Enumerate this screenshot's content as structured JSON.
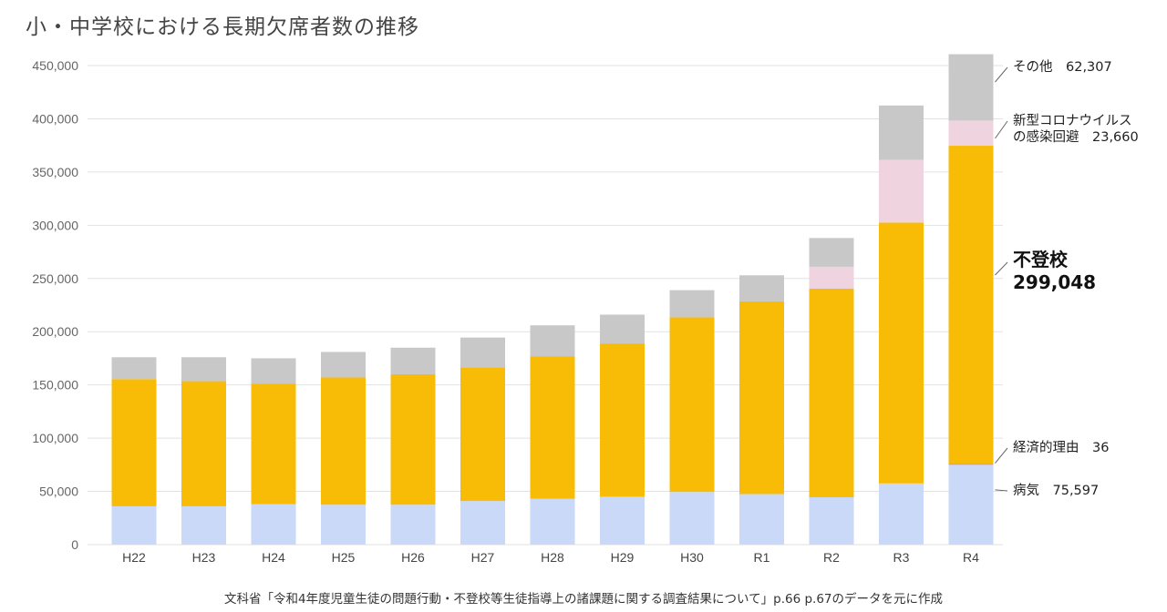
{
  "title": "小・中学校における長期欠席者数の推移",
  "source_note": "文科省「令和4年度児童生徒の問題行動・不登校等生徒指導上の諸課題に関する調査結果について」p.66 p.67のデータを元に作成",
  "colors": {
    "illness": "#c9d9f7",
    "economic": "#e07070",
    "futoko": "#f9bc06",
    "covid": "#efd3de",
    "other": "#c8c8c8",
    "grid": "#e2e2e2",
    "leader": "#666666"
  },
  "chart_data": {
    "type": "bar",
    "stacked": true,
    "categories": [
      "H22",
      "H23",
      "H24",
      "H25",
      "H26",
      "H27",
      "H28",
      "H29",
      "H30",
      "R1",
      "R2",
      "R3",
      "R4"
    ],
    "ylim": [
      0,
      450000
    ],
    "y_ticks": [
      "0",
      "50,000",
      "100,000",
      "150,000",
      "200,000",
      "250,000",
      "300,000",
      "350,000",
      "400,000",
      "450,000"
    ],
    "grid": true,
    "series": [
      {
        "key": "illness",
        "values": [
          36000,
          36000,
          38000,
          37500,
          37500,
          41000,
          43000,
          45000,
          49500,
          47500,
          44500,
          57500,
          75597
        ]
      },
      {
        "key": "economic",
        "values": [
          0,
          0,
          0,
          0,
          0,
          0,
          0,
          0,
          0,
          0,
          0,
          0,
          36
        ]
      },
      {
        "key": "futoko",
        "values": [
          119500,
          117500,
          113000,
          119500,
          122500,
          125500,
          134000,
          144000,
          164000,
          181000,
          196000,
          245000,
          299048
        ]
      },
      {
        "key": "covid",
        "values": [
          0,
          0,
          0,
          0,
          0,
          0,
          0,
          0,
          0,
          0,
          20500,
          59000,
          23660
        ]
      },
      {
        "key": "other",
        "values": [
          20500,
          22500,
          24000,
          24000,
          25000,
          28000,
          29000,
          27000,
          25500,
          24500,
          27000,
          51000,
          62307
        ]
      }
    ],
    "annotations": [
      {
        "series": "other",
        "lines": [
          "その他　62,307"
        ],
        "bold": false
      },
      {
        "series": "covid",
        "lines": [
          "新型コロナウイルス",
          "の感染回避　23,660"
        ],
        "bold": false
      },
      {
        "series": "futoko",
        "lines": [
          "不登校",
          "299,048"
        ],
        "bold": true
      },
      {
        "series": "economic",
        "lines": [
          "経済的理由　36"
        ],
        "bold": false
      },
      {
        "series": "illness",
        "lines": [
          "病気　75,597"
        ],
        "bold": false
      }
    ]
  }
}
